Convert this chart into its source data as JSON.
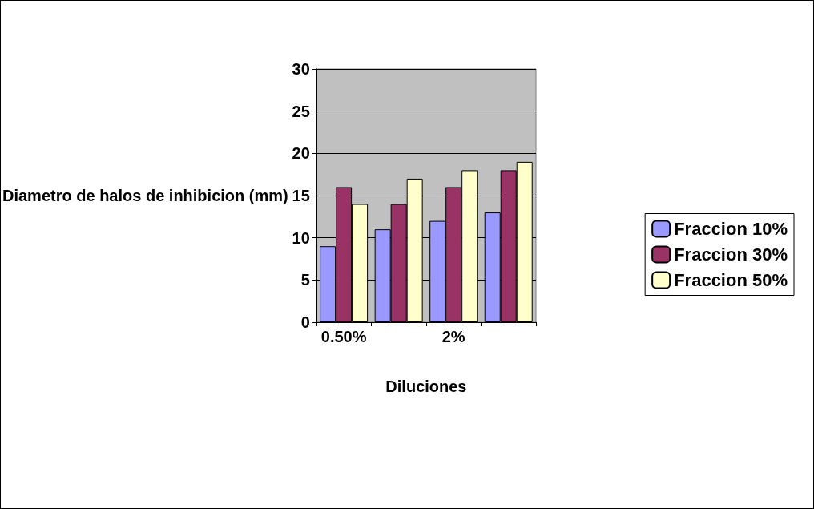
{
  "chart_data": {
    "type": "bar",
    "xlabel": "Diluciones",
    "ylabel": "Diametro de halos de inhibicion (mm)",
    "categories": [
      "0.50%",
      null,
      "2%",
      null
    ],
    "series": [
      {
        "name": "Fraccion 10%",
        "color": "#9999ff",
        "values": [
          9,
          11,
          12,
          13
        ]
      },
      {
        "name": "Fraccion 30%",
        "color": "#993366",
        "values": [
          16,
          14,
          16,
          18
        ]
      },
      {
        "name": "Fraccion 50%",
        "color": "#ffffcc",
        "values": [
          14,
          17,
          18,
          19
        ]
      }
    ],
    "ylim": [
      0,
      30
    ],
    "yticks": [
      0,
      5,
      10,
      15,
      20,
      25,
      30
    ],
    "grid": "y",
    "legend": "right"
  }
}
